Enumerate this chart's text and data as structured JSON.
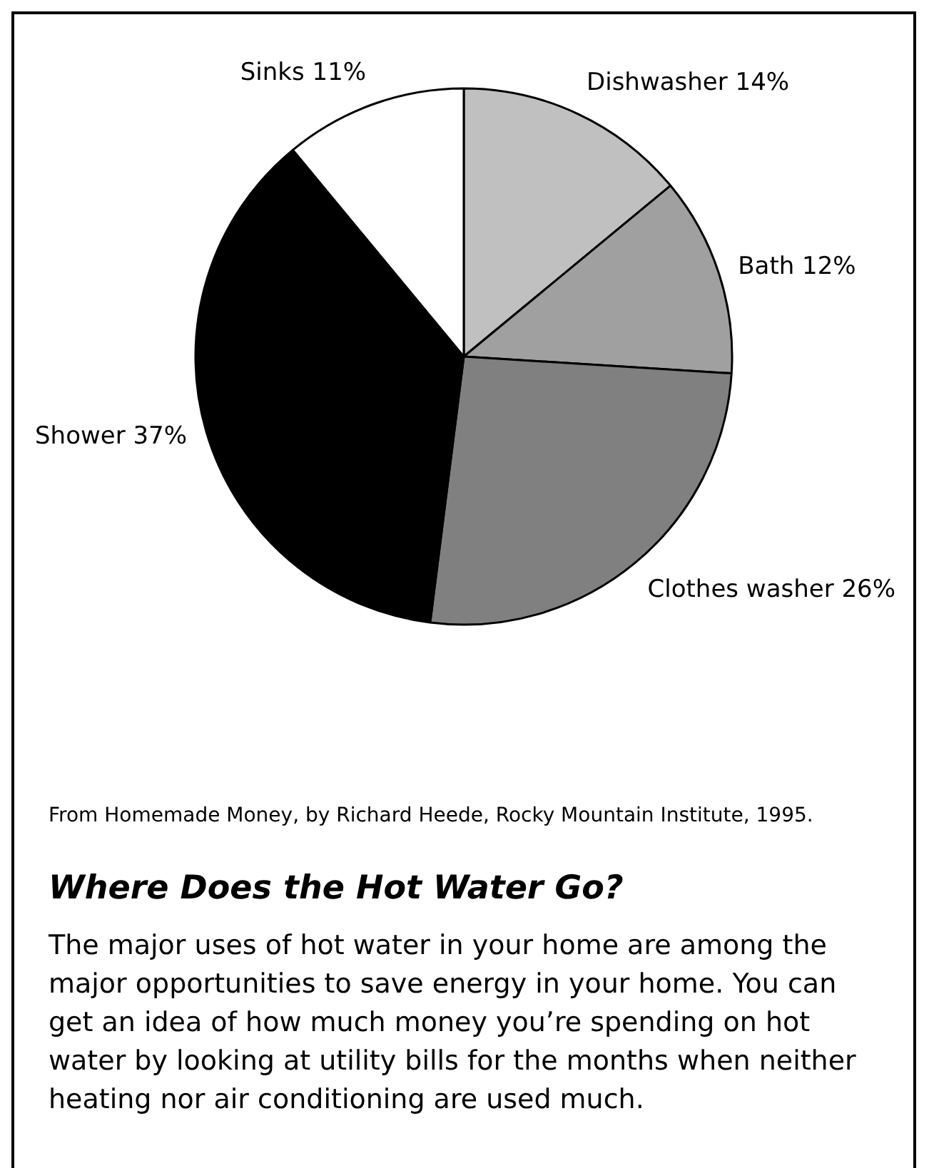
{
  "chart_data": {
    "type": "pie",
    "title": "Where Does the Hot Water Go?",
    "categories": [
      "Dishwasher",
      "Bath",
      "Clothes washer",
      "Shower",
      "Sinks"
    ],
    "values": [
      14,
      12,
      26,
      37,
      11
    ],
    "value_labels": [
      "14%",
      "12%",
      "26%",
      "37%",
      "11%"
    ],
    "colors": [
      "#c0c0c0",
      "#a0a0a0",
      "#808080",
      "#000000",
      "#ffffff"
    ],
    "legend": false,
    "annotations": [
      "From Homemade Money, by Richard Heede, Rocky Mountain Institute, 1995.",
      "The major uses of hot water in your home are among the major opportunities to save energy in your home. You can get an idea of how much money you’re spending on hot water by looking at utility bills for the months when neither heating nor air conditioning are used much."
    ]
  }
}
